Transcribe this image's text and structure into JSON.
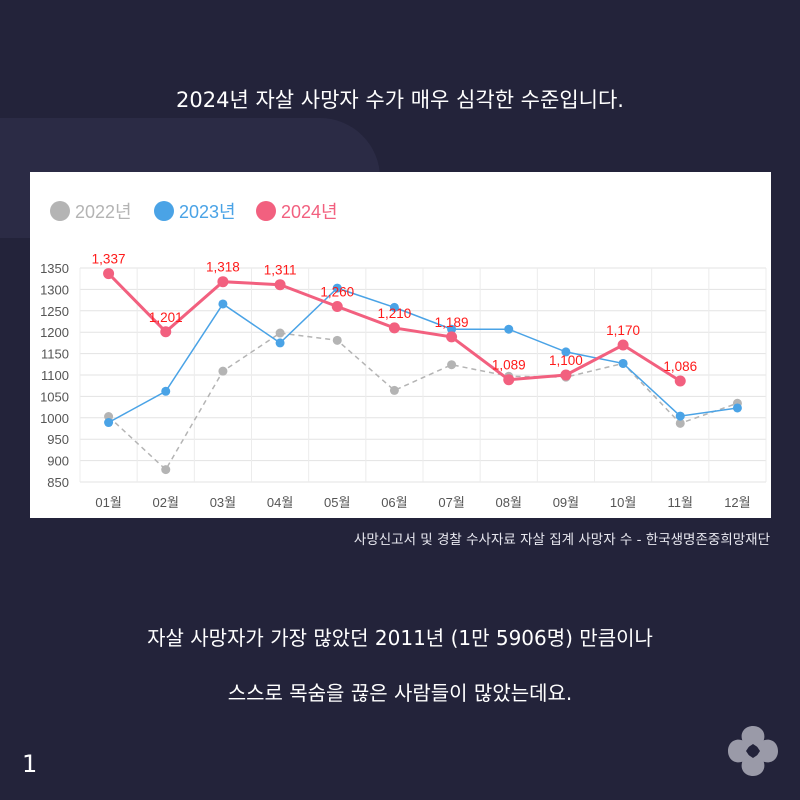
{
  "headline": "2024년 자살 사망자 수가 매우 심각한 수준입니다.",
  "source": "사망신고서 및 경찰 수사자료 자살 집계 사망자 수 - 한국생명존중희망재단",
  "body": {
    "line1": "자살 사망자가 가장 많았던 2011년 (1만 5906명) 만큼이나",
    "line2": "스스로 목숨을 끊은 사람들이 많았는데요."
  },
  "page_number": "1",
  "logo_icon": "flower-logo-icon",
  "colors": {
    "background": "#23233a",
    "series_2022": "#b4b4b4",
    "series_2023": "#4aa3e6",
    "series_2024": "#f2607f",
    "data_label": "#ff1a1a"
  },
  "chart_data": {
    "type": "line",
    "categories": [
      "01월",
      "02월",
      "03월",
      "04월",
      "05월",
      "06월",
      "07월",
      "08월",
      "09월",
      "10월",
      "11월",
      "12월"
    ],
    "ylim": [
      850,
      1350
    ],
    "yticks": [
      850,
      900,
      950,
      1000,
      1050,
      1100,
      1150,
      1200,
      1250,
      1300,
      1350
    ],
    "legend_position": "top-left",
    "grid": true,
    "series": [
      {
        "name": "2022년",
        "style": "dashed",
        "values": [
          1003,
          879,
          1109,
          1198,
          1181,
          1064,
          1124,
          1097,
          1095,
          1127,
          987,
          1034
        ]
      },
      {
        "name": "2023년",
        "style": "solid",
        "values": [
          989,
          1062,
          1266,
          1175,
          1303,
          1258,
          1207,
          1207,
          1154,
          1127,
          1004,
          1023
        ]
      },
      {
        "name": "2024년",
        "style": "bold",
        "values": [
          1337,
          1201,
          1318,
          1311,
          1260,
          1210,
          1189,
          1089,
          1100,
          1170,
          1086,
          null
        ],
        "labels": [
          "1,337",
          "1,201",
          "1,318",
          "1,311",
          "1,260",
          "1,210",
          "1,189",
          "1,089",
          "1,100",
          "1,170",
          "1,086",
          null
        ]
      }
    ]
  }
}
